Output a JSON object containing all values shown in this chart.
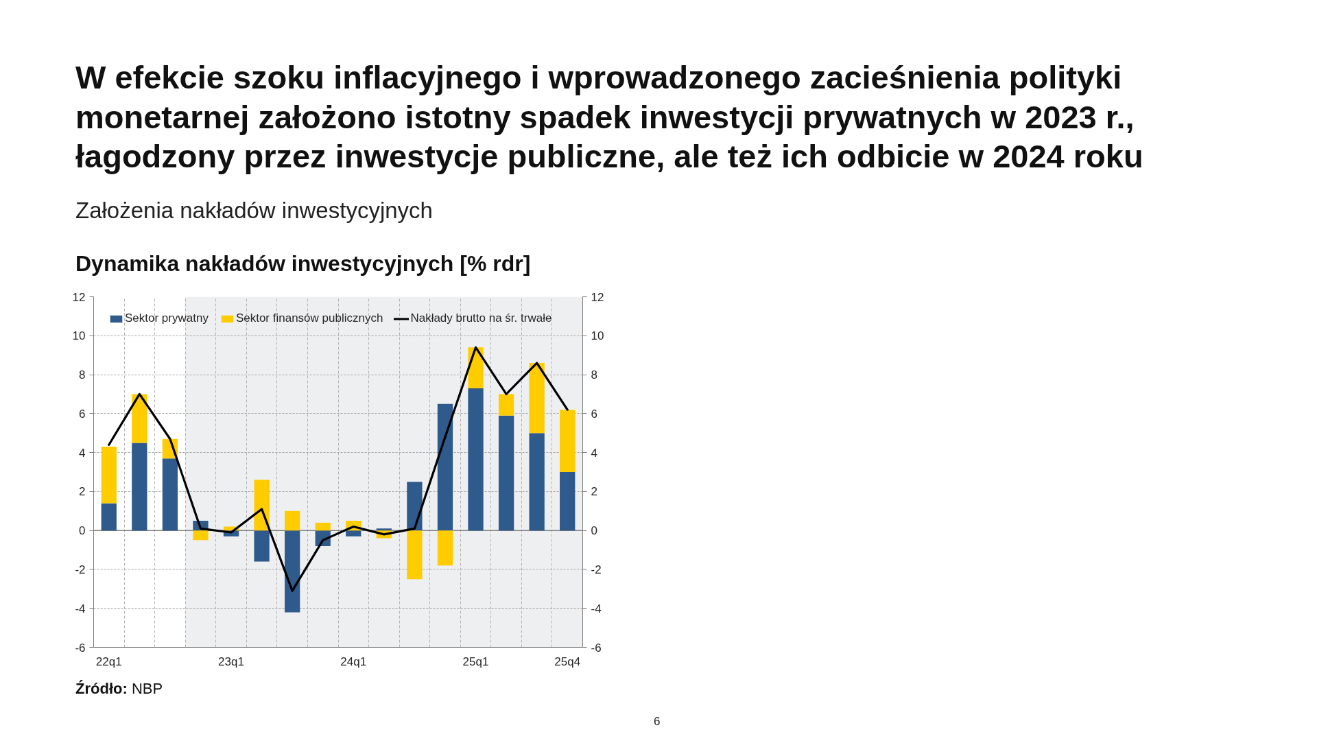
{
  "chart_data": {
    "type": "bar",
    "title": "W efekcie szoku inflacyjnego i wprowadzonego zacieśnienia polityki monetarnej założono istotny spadek inwestycji prywatnych w 2023 r., łagodzony przez inwestycje publiczne, ale też ich odbicie w 2024 roku",
    "subtitle": "Założenia nakładów inwestycyjnych",
    "annotations": [
      "Dynamika nakładów inwestycyjnych [% rdr]",
      "Źródło: NBP",
      "6"
    ],
    "categories": [
      "22q1",
      null,
      null,
      null,
      "23q1",
      null,
      null,
      null,
      "24q1",
      null,
      null,
      null,
      "25q1",
      null,
      null,
      "25q4"
    ],
    "stacked": true,
    "series": [
      {
        "name": "Sektor prywatny",
        "color": "#2e5a8c",
        "values": [
          1.4,
          4.5,
          3.7,
          0.5,
          -0.3,
          -1.6,
          -4.2,
          -0.8,
          -0.3,
          0.1,
          2.5,
          6.5,
          7.3,
          5.9,
          5.0,
          3.0
        ]
      },
      {
        "name": "Sektor finansów publicznych",
        "color": "#ffcc00",
        "values": [
          2.9,
          2.5,
          1.0,
          -0.5,
          0.2,
          2.6,
          1.0,
          0.4,
          0.5,
          -0.4,
          -2.5,
          -1.8,
          2.1,
          1.1,
          3.6,
          3.2
        ]
      },
      {
        "name": "Nakłady brutto na śr. trwałe",
        "color": "#000000",
        "type": "line",
        "values": [
          4.4,
          7.0,
          4.7,
          0.1,
          -0.1,
          1.1,
          -3.1,
          -0.5,
          0.2,
          -0.2,
          0.1,
          4.8,
          9.4,
          7.0,
          8.6,
          6.2
        ]
      }
    ],
    "ylim": [
      -6,
      12
    ],
    "yticks": [
      -6,
      -4,
      -2,
      0,
      2,
      4,
      6,
      8,
      10,
      12
    ],
    "y2lim": [
      -6,
      12
    ],
    "y2ticks": [
      -6,
      -4,
      -2,
      0,
      2,
      4,
      6,
      8,
      10,
      12
    ],
    "grid": true,
    "legend": "top left",
    "ref_lines": [
      {
        "axis": "y",
        "value": 0,
        "color": "#808080"
      }
    ]
  }
}
